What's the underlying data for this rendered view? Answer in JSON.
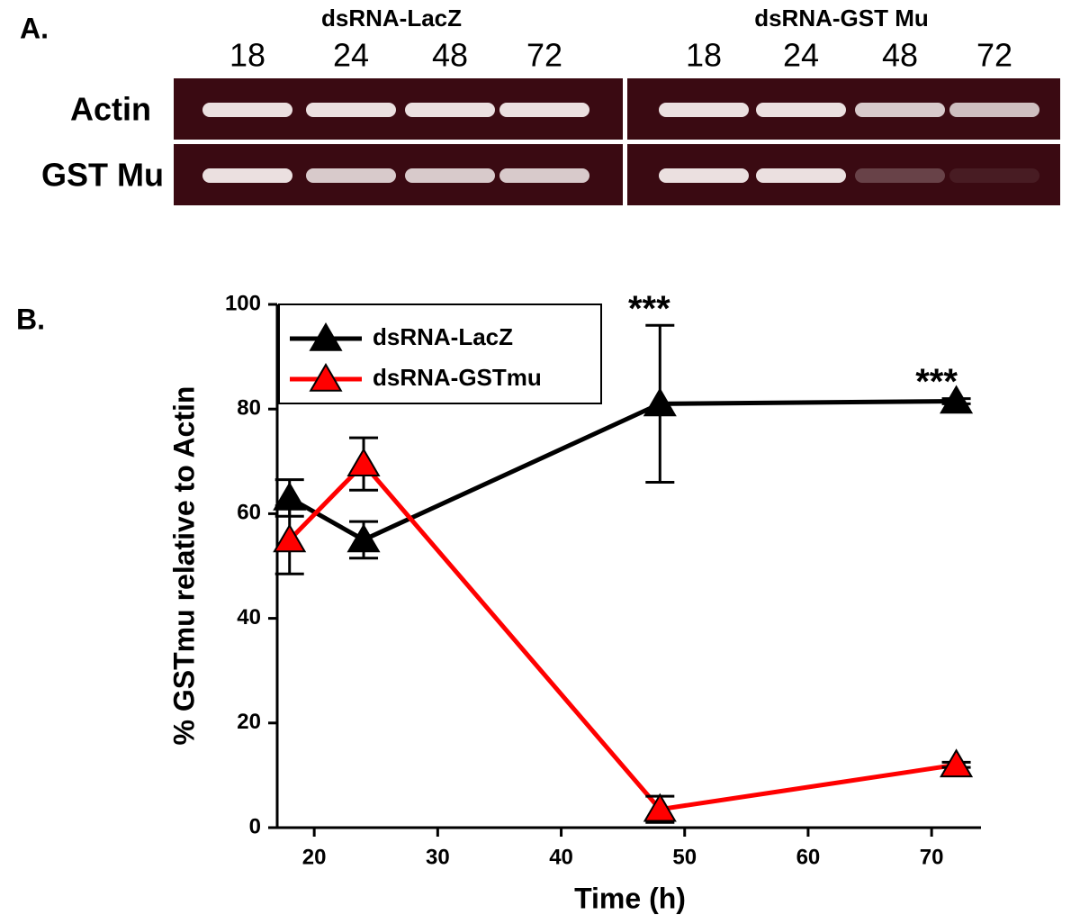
{
  "panel_a": {
    "label": "A.",
    "groups": [
      {
        "title": "dsRNA-LacZ",
        "lanes": [
          "18",
          "24",
          "48",
          "72"
        ]
      },
      {
        "title": "dsRNA-GST Mu",
        "lanes": [
          "18",
          "24",
          "48",
          "72"
        ]
      }
    ],
    "rows": [
      "Actin",
      "GST Mu"
    ]
  },
  "panel_b_label": "B.",
  "chart_data": {
    "type": "line",
    "x_label": "Time (h)",
    "y_label": "% GSTmu relative to Actin",
    "xlim": [
      17,
      74
    ],
    "xticks": [
      20,
      30,
      40,
      50,
      60,
      70
    ],
    "ylim": [
      0,
      100
    ],
    "yticks": [
      0,
      20,
      40,
      60,
      80,
      100
    ],
    "x": [
      18,
      24,
      48,
      72
    ],
    "series": [
      {
        "name": "dsRNA-LacZ",
        "color": "#000000",
        "values": [
          63,
          55,
          81,
          81.5
        ],
        "errors": [
          3.5,
          3.5,
          15,
          0.5
        ]
      },
      {
        "name": "dsRNA-GSTmu",
        "color": "#ff0000",
        "values": [
          55,
          69.5,
          3.5,
          12
        ],
        "errors": [
          6.5,
          5,
          2.5,
          0.5
        ]
      }
    ],
    "annotations": [
      "***",
      "***"
    ],
    "legend": "upper left"
  }
}
